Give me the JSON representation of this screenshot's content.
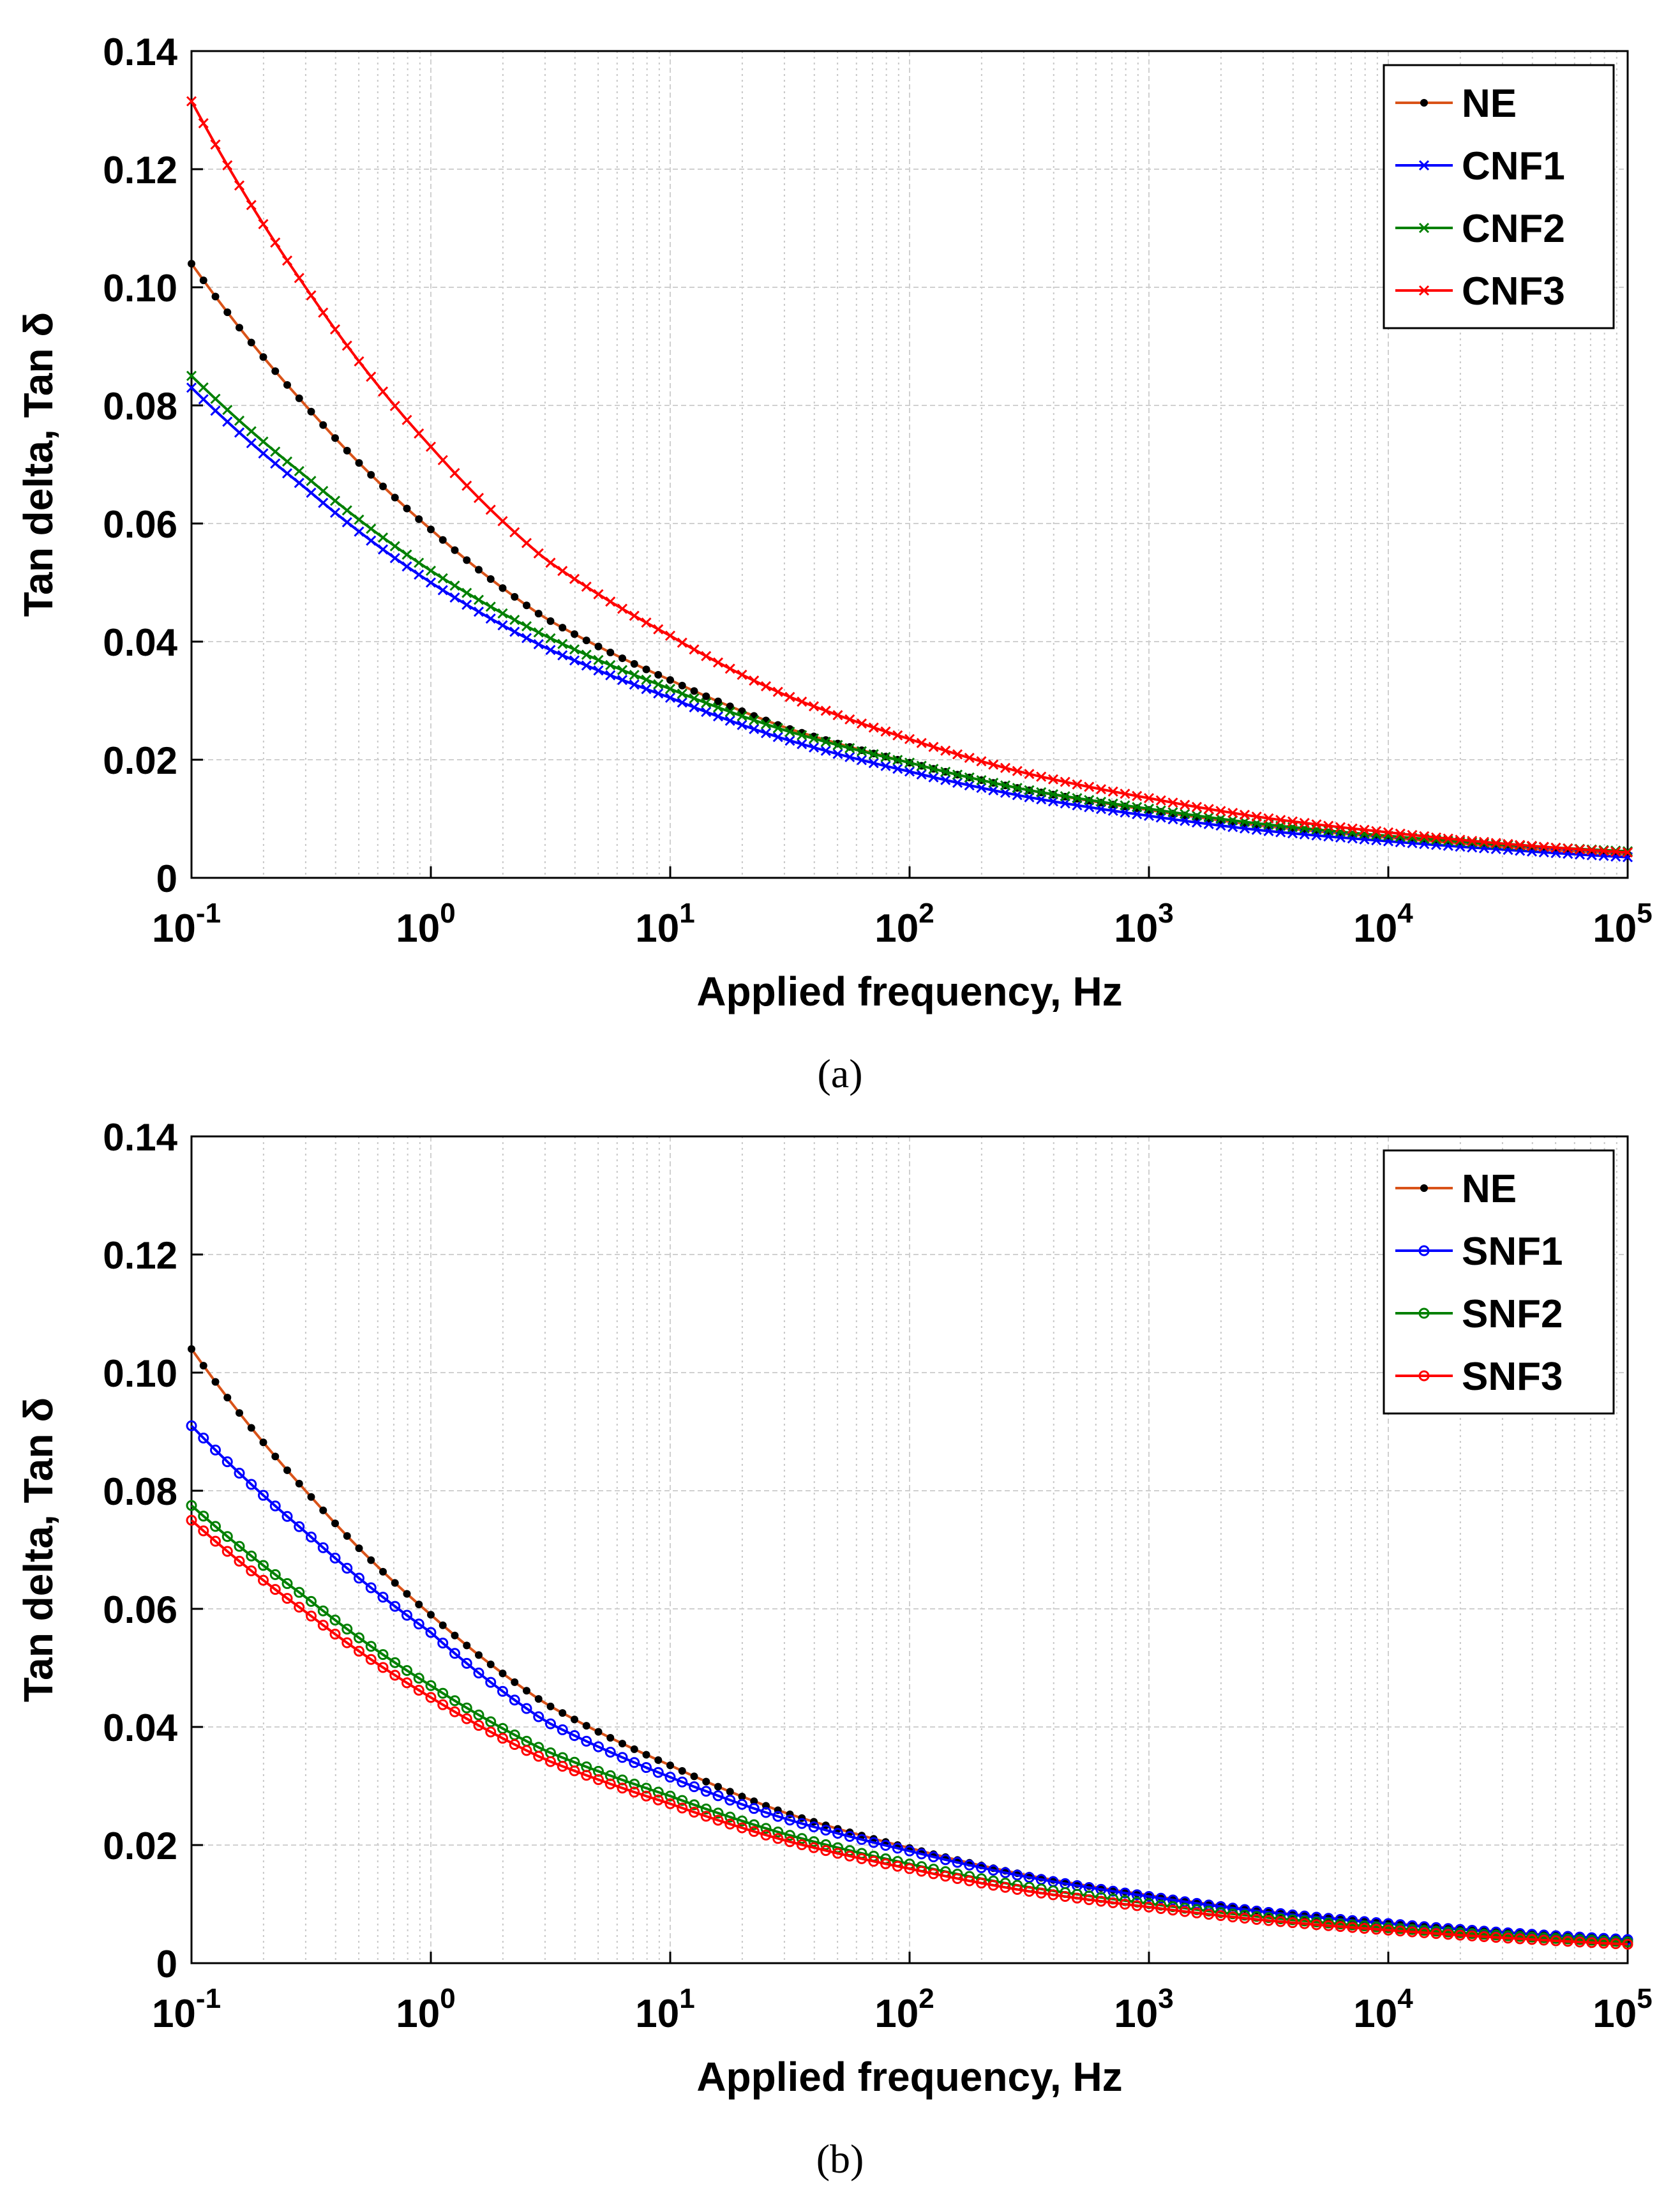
{
  "chart_data": [
    {
      "type": "line",
      "panel_label": "(a)",
      "xlabel": "Applied frequency, Hz",
      "ylabel": "Tan delta, Tan  δ",
      "xscale": "log",
      "xlim": [
        0.1,
        100000
      ],
      "ylim": [
        0,
        0.14
      ],
      "x_ticks": [
        {
          "base": "10",
          "exp": "-1"
        },
        {
          "base": "10",
          "exp": "0"
        },
        {
          "base": "10",
          "exp": "1"
        },
        {
          "base": "10",
          "exp": "2"
        },
        {
          "base": "10",
          "exp": "3"
        },
        {
          "base": "10",
          "exp": "4"
        },
        {
          "base": "10",
          "exp": "5"
        }
      ],
      "y_ticks": [
        "0",
        "0.02",
        "0.04",
        "0.06",
        "0.08",
        "0.10",
        "0.12",
        "0.14"
      ],
      "grid": true,
      "legend_position": "top-right",
      "x": [
        0.1,
        0.3,
        1,
        3,
        10,
        30,
        100,
        300,
        1000,
        3000,
        10000,
        30000,
        100000
      ],
      "series": [
        {
          "name": "NE",
          "color": "#D95319",
          "marker_color": "#000000",
          "marker": "dot",
          "values": [
            0.104,
            0.08,
            0.059,
            0.044,
            0.0335,
            0.0255,
            0.0195,
            0.015,
            0.0115,
            0.0088,
            0.0068,
            0.0053,
            0.004
          ]
        },
        {
          "name": "CNF1",
          "color": "#0000FF",
          "marker_color": "#0000FF",
          "marker": "x",
          "values": [
            0.083,
            0.066,
            0.05,
            0.039,
            0.0305,
            0.0235,
            0.018,
            0.0138,
            0.0105,
            0.008,
            0.0062,
            0.0048,
            0.0035
          ]
        },
        {
          "name": "CNF2",
          "color": "#008000",
          "marker_color": "#008000",
          "marker": "x",
          "values": [
            0.085,
            0.068,
            0.052,
            0.041,
            0.032,
            0.025,
            0.0195,
            0.015,
            0.0117,
            0.0091,
            0.0071,
            0.0056,
            0.0045
          ]
        },
        {
          "name": "CNF3",
          "color": "#FF0000",
          "marker_color": "#FF0000",
          "marker": "x",
          "values": [
            0.1315,
            0.1,
            0.073,
            0.054,
            0.041,
            0.031,
            0.0235,
            0.0178,
            0.0135,
            0.0102,
            0.0077,
            0.0058,
            0.0043
          ]
        }
      ]
    },
    {
      "type": "line",
      "panel_label": "(b)",
      "xlabel": "Applied frequency, Hz",
      "ylabel": "Tan delta, Tan  δ",
      "xscale": "log",
      "xlim": [
        0.1,
        100000
      ],
      "ylim": [
        0,
        0.14
      ],
      "x_ticks": [
        {
          "base": "10",
          "exp": "-1"
        },
        {
          "base": "10",
          "exp": "0"
        },
        {
          "base": "10",
          "exp": "1"
        },
        {
          "base": "10",
          "exp": "2"
        },
        {
          "base": "10",
          "exp": "3"
        },
        {
          "base": "10",
          "exp": "4"
        },
        {
          "base": "10",
          "exp": "5"
        }
      ],
      "y_ticks": [
        "0",
        "0.02",
        "0.04",
        "0.06",
        "0.08",
        "0.10",
        "0.12",
        "0.14"
      ],
      "grid": true,
      "legend_position": "top-right",
      "x": [
        0.1,
        0.3,
        1,
        3,
        10,
        30,
        100,
        300,
        1000,
        3000,
        10000,
        30000,
        100000
      ],
      "series": [
        {
          "name": "NE",
          "color": "#D95319",
          "marker_color": "#000000",
          "marker": "dot",
          "values": [
            0.104,
            0.08,
            0.059,
            0.044,
            0.0335,
            0.0255,
            0.0195,
            0.015,
            0.0115,
            0.0088,
            0.0068,
            0.0053,
            0.004
          ]
        },
        {
          "name": "SNF1",
          "color": "#0000FF",
          "marker_color": "#0000FF",
          "marker": "circle",
          "values": [
            0.091,
            0.073,
            0.056,
            0.041,
            0.0315,
            0.0245,
            0.019,
            0.0147,
            0.0113,
            0.0087,
            0.0067,
            0.0052,
            0.004
          ]
        },
        {
          "name": "SNF2",
          "color": "#008000",
          "marker_color": "#008000",
          "marker": "circle",
          "values": [
            0.0775,
            0.062,
            0.047,
            0.036,
            0.0283,
            0.0219,
            0.0168,
            0.013,
            0.0101,
            0.0078,
            0.006,
            0.0047,
            0.0036
          ]
        },
        {
          "name": "SNF3",
          "color": "#FF0000",
          "marker_color": "#FF0000",
          "marker": "circle",
          "values": [
            0.075,
            0.0595,
            0.045,
            0.0345,
            0.027,
            0.0208,
            0.016,
            0.0123,
            0.0095,
            0.0073,
            0.0056,
            0.0043,
            0.0032
          ]
        }
      ]
    }
  ]
}
